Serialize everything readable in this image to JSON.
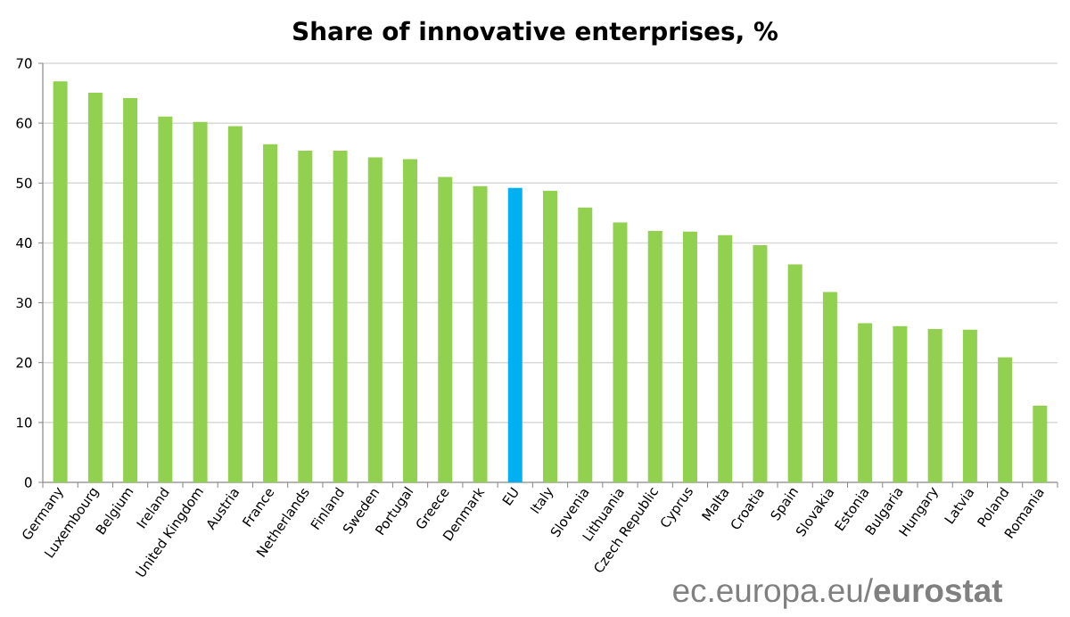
{
  "chart_data": {
    "type": "bar",
    "title": "Share of innovative enterprises, %",
    "categories": [
      "Germany",
      "Luxembourg",
      "Belgium",
      "Ireland",
      "United Kingdom",
      "Austria",
      "France",
      "Netherlands",
      "Finland",
      "Sweden",
      "Portugal",
      "Greece",
      "Denmark",
      "EU",
      "Italy",
      "Slovenia",
      "Lithuania",
      "Czech Republic",
      "Cyprus",
      "Malta",
      "Croatia",
      "Spain",
      "Slovakia",
      "Estonia",
      "Bulgaria",
      "Hungary",
      "Latvia",
      "Poland",
      "Romania"
    ],
    "values": [
      67.0,
      65.1,
      64.2,
      61.1,
      60.2,
      59.5,
      56.5,
      55.4,
      55.4,
      54.3,
      54.0,
      51.0,
      49.5,
      49.2,
      48.7,
      45.9,
      43.4,
      42.0,
      41.9,
      41.3,
      39.6,
      36.4,
      31.8,
      26.6,
      26.1,
      25.6,
      25.5,
      20.9,
      12.8
    ],
    "colors": [
      "#92d050",
      "#92d050",
      "#92d050",
      "#92d050",
      "#92d050",
      "#92d050",
      "#92d050",
      "#92d050",
      "#92d050",
      "#92d050",
      "#92d050",
      "#92d050",
      "#92d050",
      "#00b0f0",
      "#92d050",
      "#92d050",
      "#92d050",
      "#92d050",
      "#92d050",
      "#92d050",
      "#92d050",
      "#92d050",
      "#92d050",
      "#92d050",
      "#92d050",
      "#92d050",
      "#92d050",
      "#92d050",
      "#92d050"
    ],
    "ylim": [
      0,
      70
    ],
    "yticks": [
      0,
      10,
      20,
      30,
      40,
      50,
      60,
      70
    ],
    "grid": "y",
    "annotations": [
      "ec.europa.eu/**eurostat**"
    ]
  }
}
